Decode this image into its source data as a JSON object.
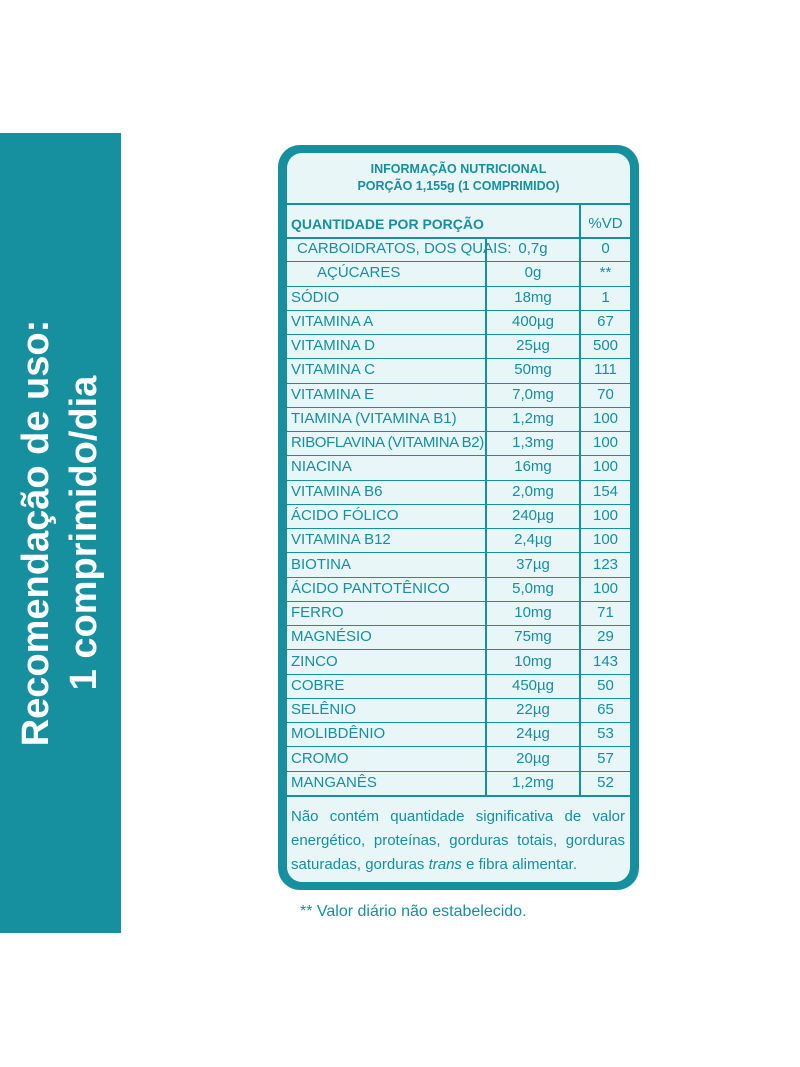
{
  "side_label": {
    "line1": "Recomendação de uso:",
    "line2": "1 comprimido/dia"
  },
  "table": {
    "title": "INFORMAÇÃO NUTRICIONAL",
    "portion": "PORÇÃO 1,155g (1 COMPRIMIDO)",
    "header_quantity": "QUANTIDADE POR PORÇÃO",
    "header_vd": "%VD",
    "rows": [
      {
        "name": "CARBOIDRATOS, DOS QUAIS:",
        "amount": "0,7g",
        "vd": "0"
      },
      {
        "name": "AÇÚCARES",
        "amount": "0g",
        "vd": "**"
      },
      {
        "name": "SÓDIO",
        "amount": "18mg",
        "vd": "1"
      },
      {
        "name": "VITAMINA A",
        "amount": "400µg",
        "vd": "67"
      },
      {
        "name": "VITAMINA D",
        "amount": "25µg",
        "vd": "500"
      },
      {
        "name": "VITAMINA C",
        "amount": "50mg",
        "vd": "111"
      },
      {
        "name": "VITAMINA E",
        "amount": "7,0mg",
        "vd": "70"
      },
      {
        "name": "TIAMINA (VITAMINA B1)",
        "amount": "1,2mg",
        "vd": "100"
      },
      {
        "name": "RIBOFLAVINA (VITAMINA B2)",
        "amount": "1,3mg",
        "vd": "100"
      },
      {
        "name": "NIACINA",
        "amount": "16mg",
        "vd": "100"
      },
      {
        "name": "VITAMINA B6",
        "amount": "2,0mg",
        "vd": "154"
      },
      {
        "name": "ÁCIDO FÓLICO",
        "amount": "240µg",
        "vd": "100"
      },
      {
        "name": "VITAMINA B12",
        "amount": "2,4µg",
        "vd": "100"
      },
      {
        "name": "BIOTINA",
        "amount": "37µg",
        "vd": "123"
      },
      {
        "name": "ÁCIDO PANTOTÊNICO",
        "amount": "5,0mg",
        "vd": "100"
      },
      {
        "name": "FERRO",
        "amount": "10mg",
        "vd": "71"
      },
      {
        "name": "MAGNÉSIO",
        "amount": "75mg",
        "vd": "29"
      },
      {
        "name": "ZINCO",
        "amount": "10mg",
        "vd": "143"
      },
      {
        "name": "COBRE",
        "amount": "450µg",
        "vd": "50"
      },
      {
        "name": "SELÊNIO",
        "amount": "22µg",
        "vd": "65"
      },
      {
        "name": "MOLIBDÊNIO",
        "amount": "24µg",
        "vd": "53"
      },
      {
        "name": "CROMO",
        "amount": "20µg",
        "vd": "57"
      },
      {
        "name": "MANGANÊS",
        "amount": "1,2mg",
        "vd": "52"
      }
    ],
    "note_part1": "Não contém quantidade significativa de valor energético, proteínas, gorduras totais, gorduras saturadas, gorduras ",
    "note_italic": "trans",
    "note_part2": " e fibra alimentar."
  },
  "footnote": "** Valor diário não estabelecido.",
  "colors": {
    "accent": "#168f9f",
    "panel_bg": "#e8f6f8"
  }
}
